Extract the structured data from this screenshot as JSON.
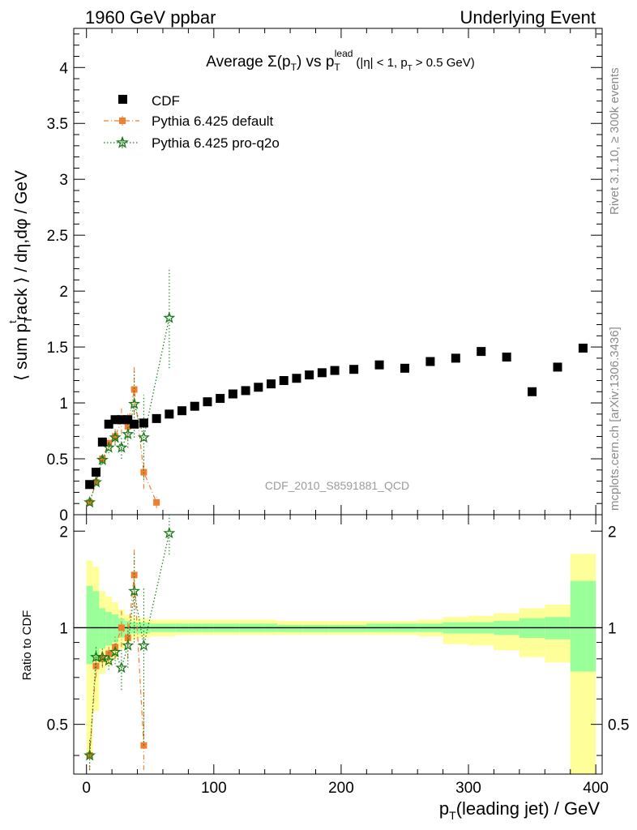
{
  "header": {
    "left": "1960 GeV ppbar",
    "right": "Underlying Event"
  },
  "side_labels": {
    "rivet": "Rivet 3.1.10, ≥ 300k events",
    "mcplots": "mcplots.cern.ch [arXiv:1306.3436]"
  },
  "watermark": "CDF_2010_S8591881_QCD",
  "colors": {
    "cdf": "#000000",
    "pythia_default": "#f08030",
    "pythia_proq2o": "#1a7a1a",
    "band_inner": "#99ff99",
    "band_outer": "#ffff99"
  },
  "chart_data": [
    {
      "type": "scatter",
      "title": "Average Σ(p_T) vs p_T^lead (|η| < 1, p_T > 0.5 GeV)",
      "title_parts": {
        "avg": "Average",
        "sigma": "Σ(p",
        "t_sub": "T",
        "close_vs": ") vs p",
        "lead_sup": "lead",
        "cond_open": "(|η| < 1, p",
        "cond_close": "> 0.5 GeV)"
      },
      "ylabel": "⟨ sum p_T^track ⟩ / dη,dφ / GeV",
      "ylabel_parts": {
        "a": "⟨ sum p",
        "sub": "T",
        "sup": "t",
        "b": "rack ⟩ / dη,dφ / GeV"
      },
      "xlim": [
        -10,
        405
      ],
      "ylim": [
        0,
        4.35
      ],
      "yticks": [
        0,
        0.5,
        1,
        1.5,
        2,
        2.5,
        3,
        3.5,
        4
      ],
      "ytick_labels": [
        "0",
        "0.5",
        "1",
        "1.5",
        "2",
        "2.5",
        "3",
        "3.5",
        "4"
      ],
      "legend_position": "top-left",
      "series": [
        {
          "name": "CDF",
          "marker": "square",
          "points": [
            [
              2.5,
              0.27
            ],
            [
              7.5,
              0.38
            ],
            [
              12.5,
              0.65
            ],
            [
              17.5,
              0.81
            ],
            [
              22.5,
              0.85
            ],
            [
              27.5,
              0.85
            ],
            [
              32.5,
              0.85
            ],
            [
              37.5,
              0.81
            ],
            [
              45,
              0.82
            ],
            [
              55,
              0.86
            ],
            [
              65,
              0.9
            ],
            [
              75,
              0.93
            ],
            [
              85,
              0.97
            ],
            [
              95,
              1.01
            ],
            [
              105,
              1.04
            ],
            [
              115,
              1.08
            ],
            [
              125,
              1.11
            ],
            [
              135,
              1.14
            ],
            [
              145,
              1.17
            ],
            [
              155,
              1.2
            ],
            [
              165,
              1.22
            ],
            [
              175,
              1.25
            ],
            [
              185,
              1.27
            ],
            [
              195,
              1.29
            ],
            [
              210,
              1.3
            ],
            [
              230,
              1.34
            ],
            [
              250,
              1.31
            ],
            [
              270,
              1.37
            ],
            [
              290,
              1.4
            ],
            [
              310,
              1.46
            ],
            [
              330,
              1.41
            ],
            [
              350,
              1.1
            ],
            [
              370,
              1.32
            ],
            [
              390,
              1.49
            ]
          ]
        },
        {
          "name": "Pythia 6.425 default",
          "marker": "square-small",
          "line": "dash-dot",
          "points": [
            [
              2.5,
              0.11
            ],
            [
              7.5,
              0.29
            ],
            [
              12.5,
              0.5
            ],
            [
              17.5,
              0.64
            ],
            [
              22.5,
              0.7
            ],
            [
              27.5,
              0.84
            ],
            [
              32.5,
              0.79
            ],
            [
              37.5,
              1.12
            ],
            [
              45,
              0.38
            ],
            [
              55,
              0.11
            ]
          ],
          "errors": [
            0.02,
            0.03,
            0.04,
            0.05,
            0.07,
            0.12,
            0.12,
            0.22,
            0.15,
            0.05
          ]
        },
        {
          "name": "Pythia 6.425 pro-q2o",
          "marker": "star",
          "line": "dotted",
          "points": [
            [
              2.5,
              0.11
            ],
            [
              7.5,
              0.29
            ],
            [
              12.5,
              0.49
            ],
            [
              17.5,
              0.6
            ],
            [
              22.5,
              0.69
            ],
            [
              27.5,
              0.6
            ],
            [
              32.5,
              0.72
            ],
            [
              37.5,
              0.99
            ],
            [
              45,
              0.69
            ],
            [
              65,
              1.76
            ]
          ],
          "errors": [
            0.02,
            0.03,
            0.04,
            0.05,
            0.07,
            0.1,
            0.12,
            0.3,
            0.38,
            0.45
          ]
        }
      ]
    },
    {
      "type": "line",
      "ylabel": "Ratio to CDF",
      "xlabel": "p_T(leading jet) / GeV",
      "xlabel_parts": {
        "p": "p",
        "sub": "T",
        "rest": "(leading jet) / GeV"
      },
      "xlim": [
        -10,
        405
      ],
      "ylim": [
        0.35,
        2.25
      ],
      "xticks": [
        0,
        100,
        200,
        300,
        400
      ],
      "xtick_labels": [
        "0",
        "100",
        "200",
        "300",
        "400"
      ],
      "yticks": [
        0.5,
        1,
        2
      ],
      "ytick_labels": [
        "0.5",
        "1",
        "2"
      ],
      "reference_line": 1,
      "bands": [
        [
          0,
          5,
          1.35,
          0.77,
          1.62,
          0.39
        ],
        [
          5,
          10,
          1.3,
          0.8,
          1.55,
          0.55
        ],
        [
          10,
          15,
          1.15,
          0.86,
          1.3,
          0.72
        ],
        [
          15,
          20,
          1.12,
          0.88,
          1.25,
          0.76
        ],
        [
          20,
          25,
          1.1,
          0.9,
          1.2,
          0.8
        ],
        [
          25,
          30,
          1.07,
          0.93,
          1.14,
          0.86
        ],
        [
          30,
          35,
          1.05,
          0.95,
          1.1,
          0.9
        ],
        [
          35,
          40,
          1.04,
          0.96,
          1.08,
          0.92
        ],
        [
          40,
          50,
          1.04,
          0.96,
          1.07,
          0.93
        ],
        [
          50,
          60,
          1.03,
          0.97,
          1.06,
          0.94
        ],
        [
          60,
          70,
          1.03,
          0.97,
          1.06,
          0.94
        ],
        [
          70,
          80,
          1.03,
          0.97,
          1.06,
          0.95
        ],
        [
          80,
          90,
          1.03,
          0.97,
          1.06,
          0.95
        ],
        [
          90,
          100,
          1.03,
          0.97,
          1.06,
          0.95
        ],
        [
          100,
          110,
          1.03,
          0.97,
          1.06,
          0.95
        ],
        [
          110,
          120,
          1.03,
          0.97,
          1.06,
          0.95
        ],
        [
          120,
          130,
          1.03,
          0.97,
          1.06,
          0.95
        ],
        [
          130,
          140,
          1.03,
          0.97,
          1.06,
          0.95
        ],
        [
          140,
          150,
          1.03,
          0.97,
          1.06,
          0.95
        ],
        [
          150,
          160,
          1.02,
          0.97,
          1.05,
          0.95
        ],
        [
          160,
          170,
          1.02,
          0.97,
          1.05,
          0.95
        ],
        [
          170,
          180,
          1.02,
          0.97,
          1.05,
          0.95
        ],
        [
          180,
          190,
          1.02,
          0.97,
          1.05,
          0.95
        ],
        [
          190,
          200,
          1.02,
          0.97,
          1.05,
          0.95
        ],
        [
          200,
          220,
          1.02,
          0.97,
          1.05,
          0.95
        ],
        [
          220,
          240,
          1.03,
          0.97,
          1.05,
          0.95
        ],
        [
          240,
          260,
          1.03,
          0.97,
          1.05,
          0.95
        ],
        [
          260,
          280,
          1.03,
          0.97,
          1.06,
          0.94
        ],
        [
          280,
          300,
          1.04,
          0.96,
          1.08,
          0.89
        ],
        [
          300,
          320,
          1.04,
          0.96,
          1.09,
          0.88
        ],
        [
          320,
          340,
          1.05,
          0.95,
          1.11,
          0.85
        ],
        [
          340,
          360,
          1.07,
          0.93,
          1.15,
          0.81
        ],
        [
          360,
          380,
          1.08,
          0.92,
          1.18,
          0.78
        ],
        [
          380,
          400,
          1.4,
          0.73,
          1.7,
          0.35
        ]
      ],
      "series": [
        {
          "name": "Pythia 6.425 default",
          "points": [
            [
              2.5,
              0.4
            ],
            [
              7.5,
              0.76
            ],
            [
              12.5,
              0.8
            ],
            [
              17.5,
              0.83
            ],
            [
              22.5,
              0.87
            ],
            [
              27.5,
              1.0
            ],
            [
              32.5,
              0.93
            ],
            [
              37.5,
              1.46
            ],
            [
              45,
              0.43
            ]
          ],
          "errors": [
            0.05,
            0.06,
            0.05,
            0.05,
            0.07,
            0.13,
            0.13,
            0.3,
            0.2
          ]
        },
        {
          "name": "Pythia 6.425 pro-q2o",
          "points": [
            [
              2.5,
              0.4
            ],
            [
              7.5,
              0.81
            ],
            [
              12.5,
              0.81
            ],
            [
              17.5,
              0.79
            ],
            [
              22.5,
              0.84
            ],
            [
              27.5,
              0.75
            ],
            [
              32.5,
              0.88
            ],
            [
              37.5,
              1.3
            ],
            [
              45,
              0.88
            ],
            [
              65,
              1.97
            ]
          ],
          "errors": [
            0.05,
            0.06,
            0.05,
            0.05,
            0.07,
            0.11,
            0.13,
            0.4,
            0.45,
            0.28
          ]
        }
      ]
    }
  ]
}
